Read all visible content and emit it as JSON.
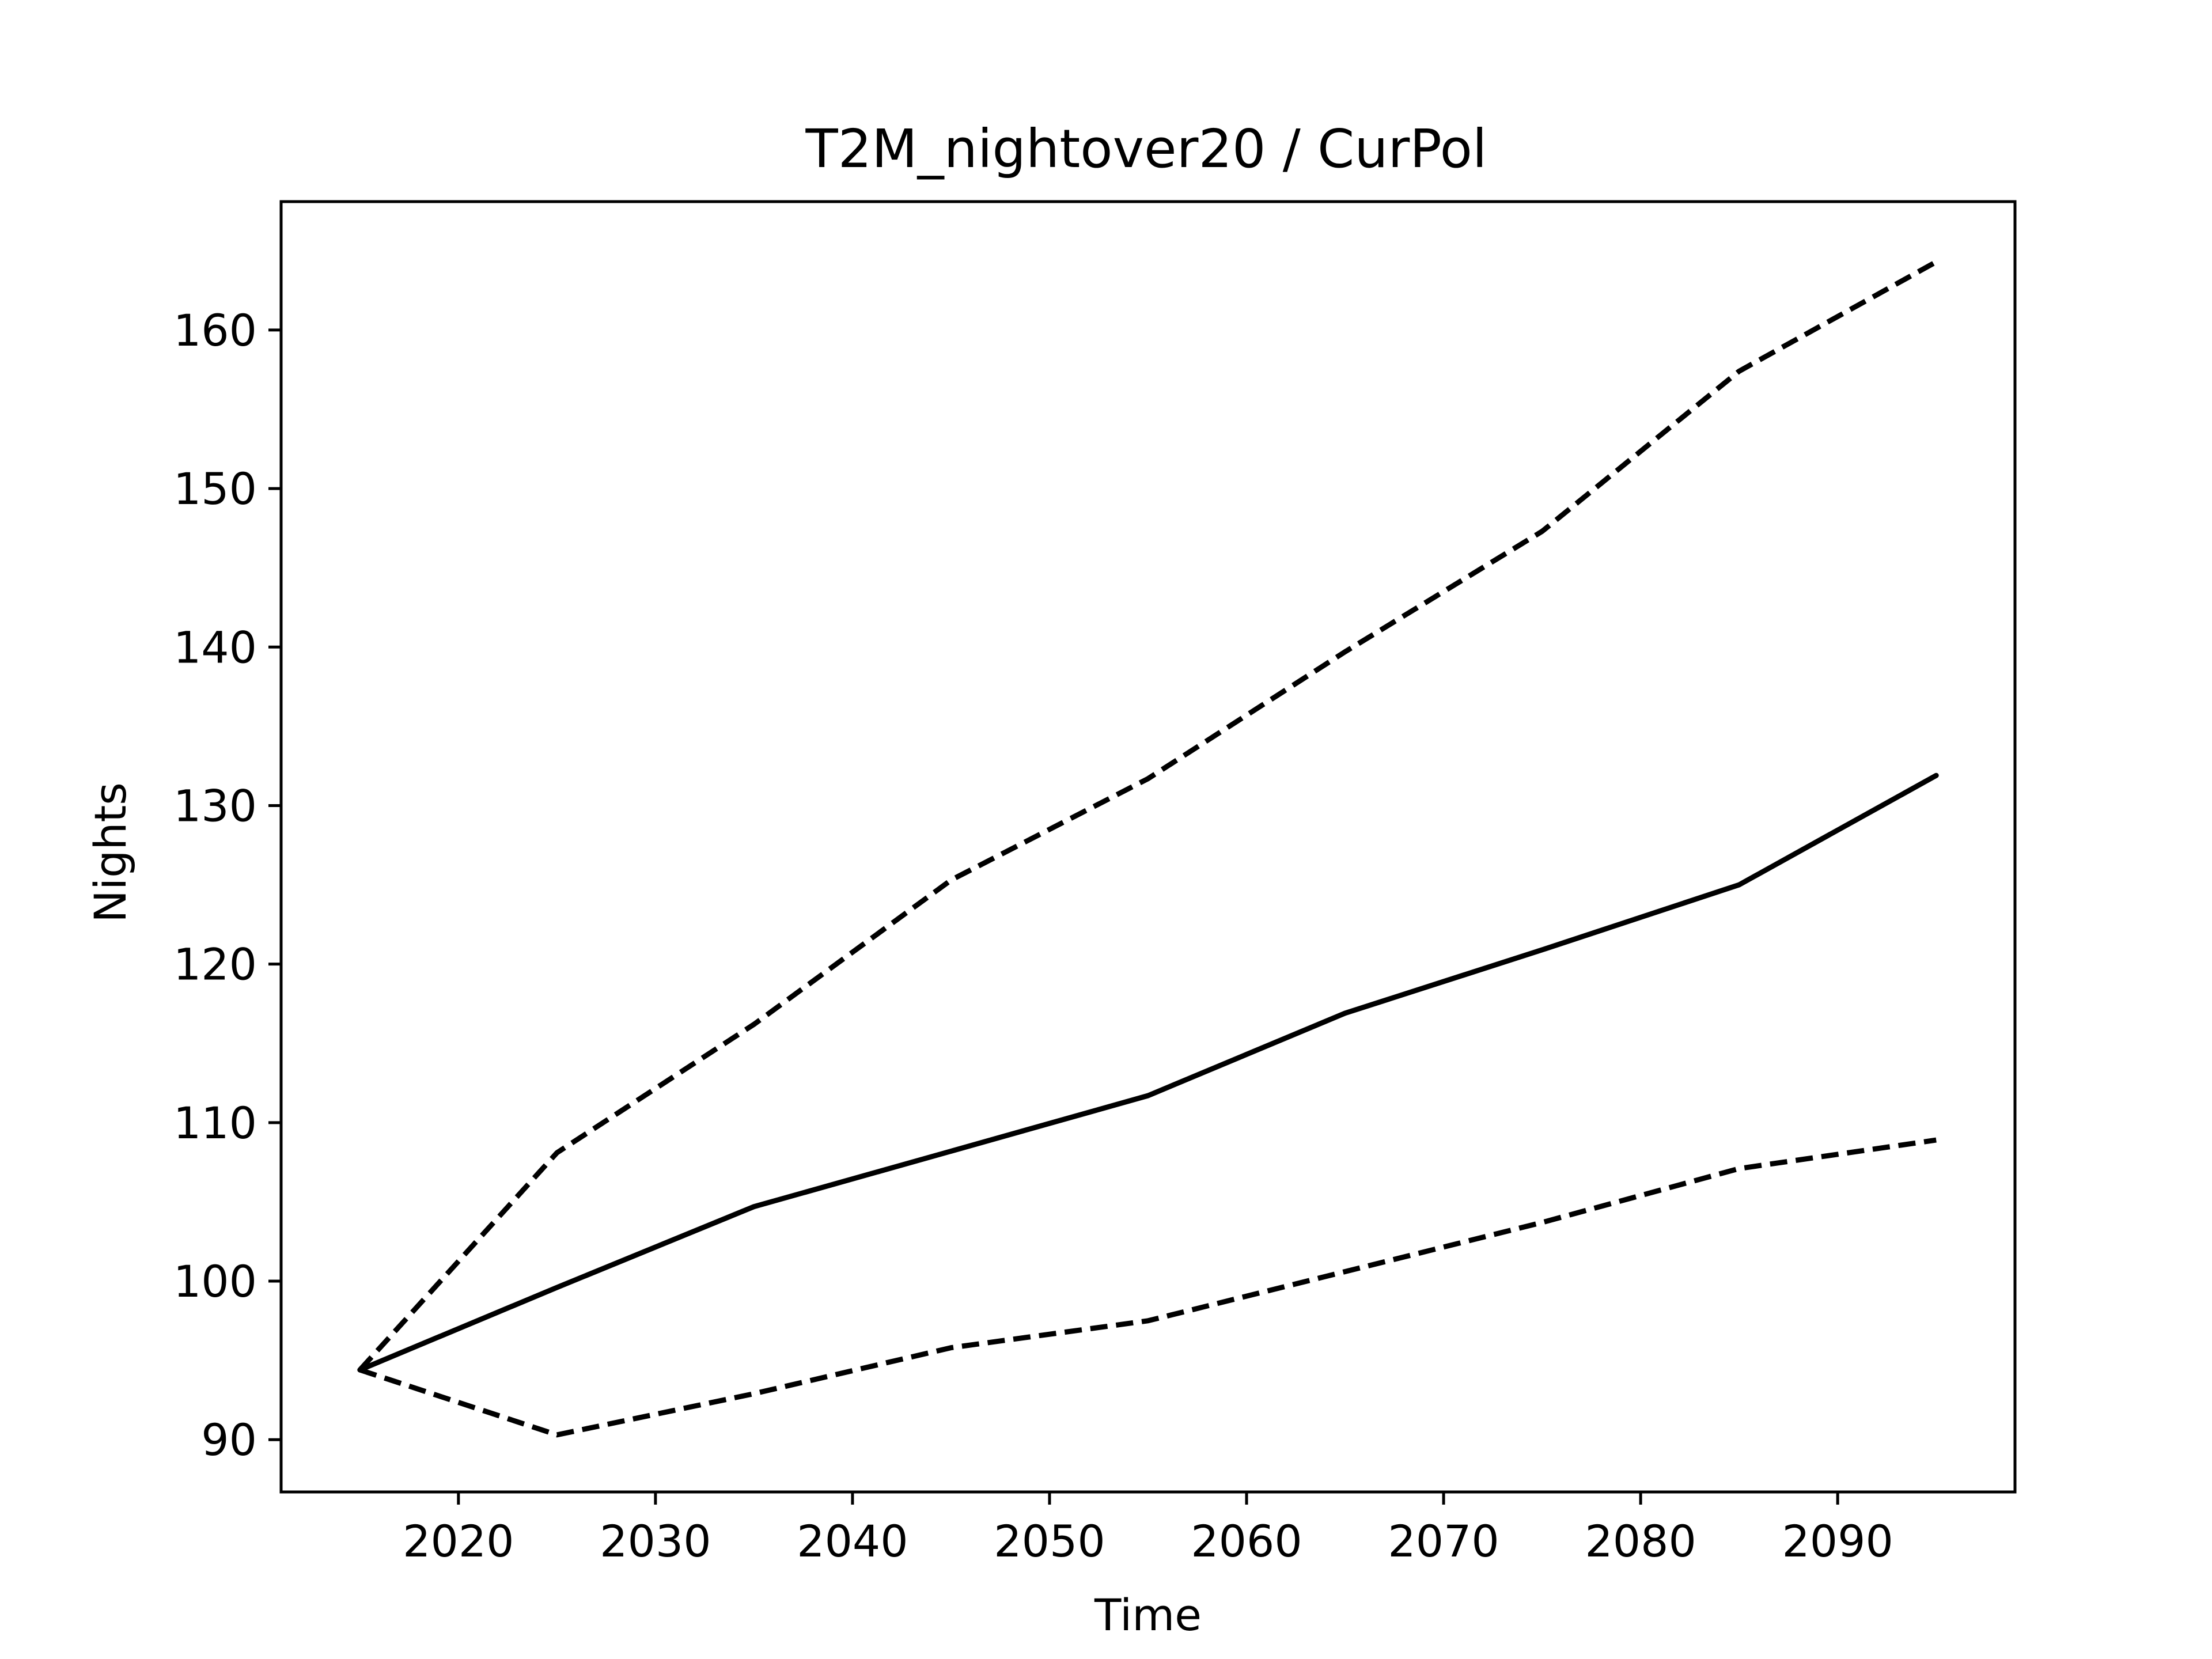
{
  "chart_data": {
    "type": "line",
    "title": "T2M_nightover20 / CurPol",
    "xlabel": "Time",
    "ylabel": "Nights",
    "xlim": [
      2011,
      2099
    ],
    "ylim": [
      86.7,
      168.1
    ],
    "xticks": [
      2020,
      2030,
      2040,
      2050,
      2060,
      2070,
      2080,
      2090
    ],
    "yticks": [
      90,
      100,
      110,
      120,
      130,
      140,
      150,
      160
    ],
    "grid": false,
    "legend": null,
    "x": [
      2015,
      2025,
      2035,
      2045,
      2055,
      2065,
      2075,
      2085,
      2095
    ],
    "series": [
      {
        "style": "solid",
        "color": "#000000",
        "values": [
          94.4,
          99.6,
          104.7,
          108.2,
          111.7,
          116.9,
          120.9,
          125.0,
          131.9
        ]
      },
      {
        "style": "dashed",
        "color": "#000000",
        "values": [
          94.4,
          108.1,
          116.2,
          125.3,
          131.7,
          139.7,
          147.3,
          157.4,
          164.3
        ]
      },
      {
        "style": "dashed",
        "color": "#000000",
        "values": [
          94.4,
          90.3,
          92.9,
          95.8,
          97.5,
          100.6,
          103.7,
          107.1,
          108.9
        ]
      }
    ]
  }
}
